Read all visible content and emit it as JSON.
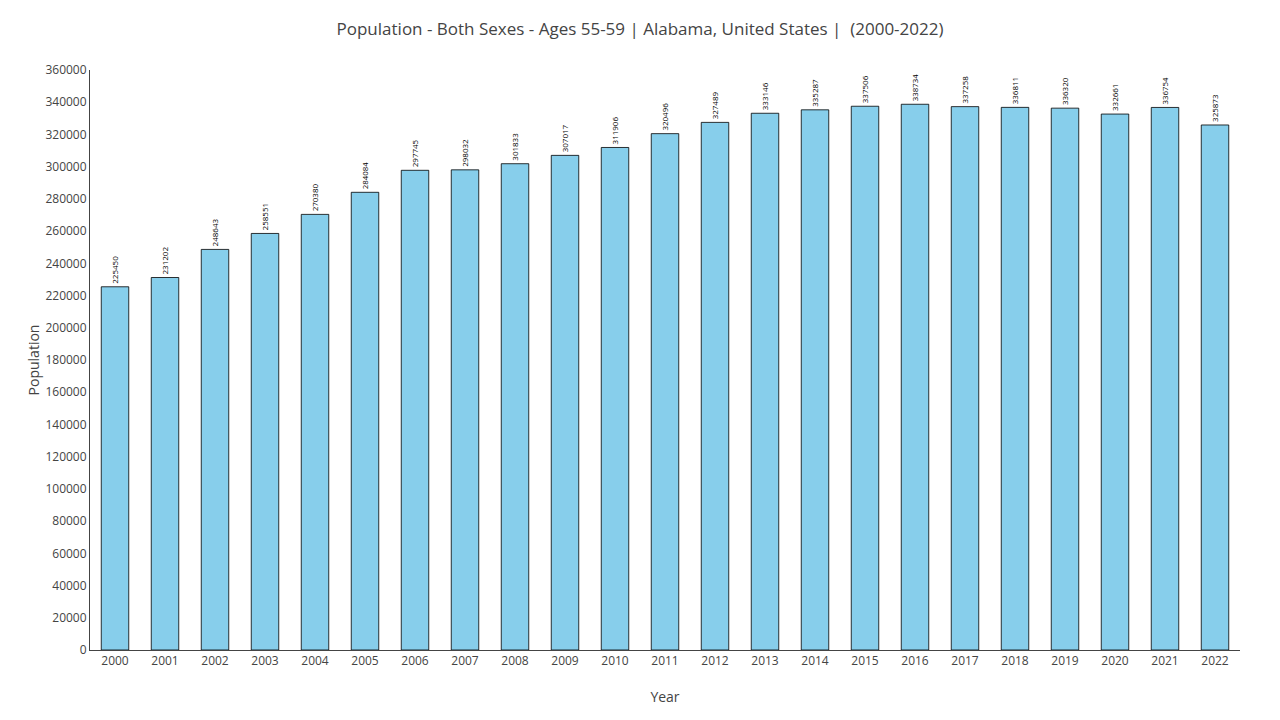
{
  "chart_data": {
    "type": "bar",
    "title": "Population - Both Sexes - Ages 55-59 | Alabama, United States |  (2000-2022)",
    "xlabel": "Year",
    "ylabel": "Population",
    "categories": [
      "2000",
      "2001",
      "2002",
      "2003",
      "2004",
      "2005",
      "2006",
      "2007",
      "2008",
      "2009",
      "2010",
      "2011",
      "2012",
      "2013",
      "2014",
      "2015",
      "2016",
      "2017",
      "2018",
      "2019",
      "2020",
      "2021",
      "2022"
    ],
    "values": [
      225450,
      231202,
      248643,
      258551,
      270380,
      284084,
      297745,
      298032,
      301833,
      307017,
      311906,
      320496,
      327489,
      333146,
      335287,
      337506,
      338734,
      337258,
      336811,
      336320,
      332661,
      336754,
      325873
    ],
    "color": "#87ceeb",
    "ylim": [
      0,
      360000
    ],
    "yticks": [
      0,
      20000,
      40000,
      60000,
      80000,
      100000,
      120000,
      140000,
      160000,
      180000,
      200000,
      220000,
      240000,
      260000,
      280000,
      300000,
      320000,
      340000,
      360000
    ],
    "grid": false,
    "data_labels": true
  }
}
